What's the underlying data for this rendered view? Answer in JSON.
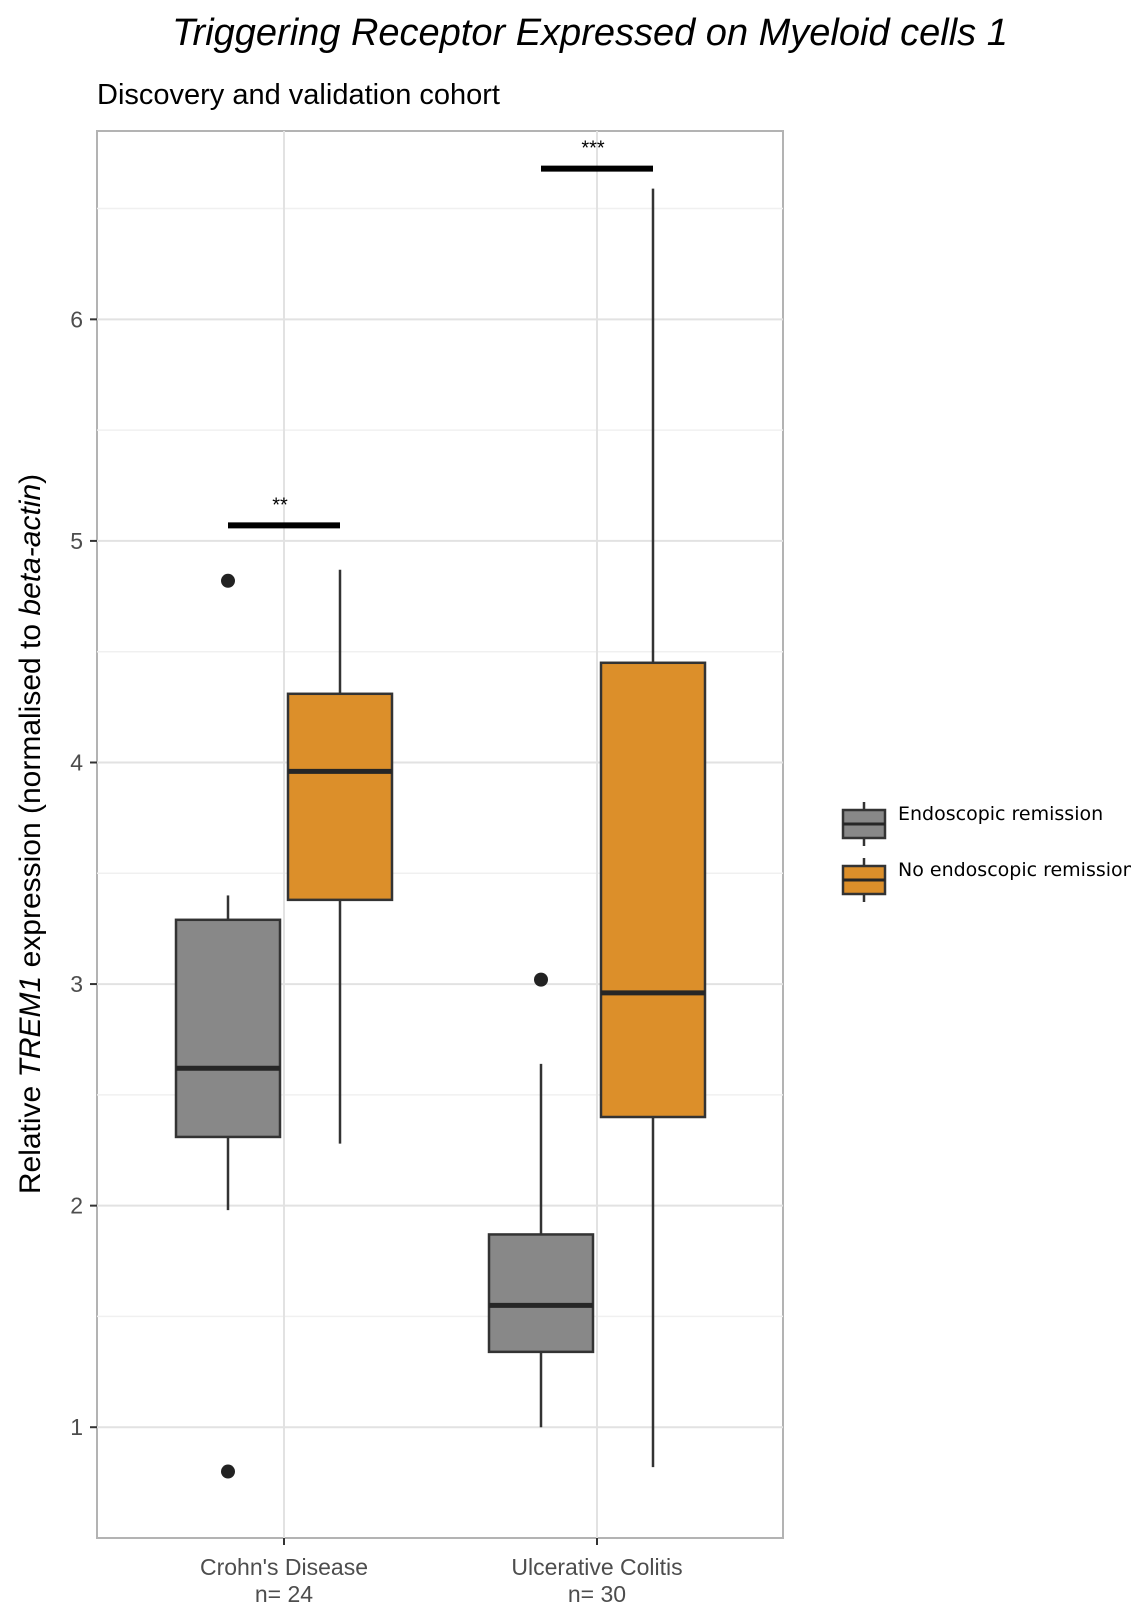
{
  "chart_data": {
    "type": "box",
    "title": "Triggering Receptor Expressed on Myeloid cells 1",
    "subtitle": "Discovery and validation cohort",
    "ylabel_parts": [
      "Relative ",
      "TREM1",
      " expression (normalised to ",
      "beta-actin",
      ")"
    ],
    "ylim": [
      0.5,
      6.85
    ],
    "yticks": [
      1,
      2,
      3,
      4,
      5,
      6
    ],
    "grid": true,
    "legend_position": "right",
    "categories": [
      {
        "label": "Crohn's Disease",
        "n_label": "n= 24"
      },
      {
        "label": "Ulcerative Colitis",
        "n_label": "n= 30"
      }
    ],
    "series": [
      {
        "name": "Endoscopic remission",
        "color": "#888888",
        "boxes": [
          {
            "whisker_low": 1.98,
            "q1": 2.31,
            "median": 2.62,
            "q3": 3.29,
            "whisker_high": 3.4,
            "outliers": [
              4.82,
              0.8
            ]
          },
          {
            "whisker_low": 1.0,
            "q1": 1.34,
            "median": 1.55,
            "q3": 1.87,
            "whisker_high": 2.64,
            "outliers": [
              3.02
            ]
          }
        ]
      },
      {
        "name": "No endoscopic remission",
        "color": "#dc8f2a",
        "boxes": [
          {
            "whisker_low": 2.28,
            "q1": 3.38,
            "median": 3.96,
            "q3": 4.31,
            "whisker_high": 4.87,
            "outliers": []
          },
          {
            "whisker_low": 0.82,
            "q1": 2.4,
            "median": 2.96,
            "q3": 4.45,
            "whisker_high": 6.59,
            "outliers": []
          }
        ]
      }
    ],
    "significance": [
      {
        "category": 0,
        "label": "**",
        "y": 5.07
      },
      {
        "category": 1,
        "label": "***",
        "y": 6.68
      }
    ]
  }
}
